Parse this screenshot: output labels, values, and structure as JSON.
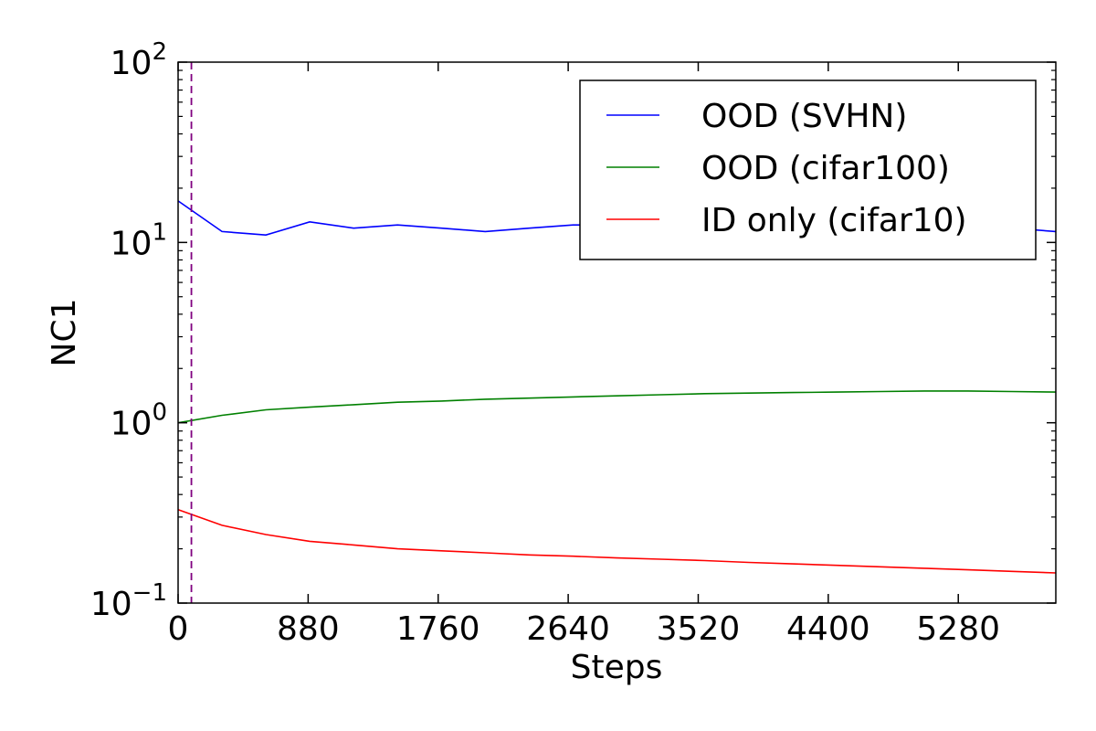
{
  "chart_data": {
    "type": "line",
    "title": "",
    "xlabel": "Steps",
    "ylabel": "NC1",
    "xlim": [
      0,
      5940
    ],
    "ylim": [
      0.1,
      100
    ],
    "yscale": "log",
    "grid": false,
    "legend_position": "top-right",
    "xticks": [
      0,
      880,
      1760,
      2640,
      3520,
      4400,
      5280
    ],
    "xtick_labels": [
      "0",
      "880",
      "1760",
      "2640",
      "3520",
      "4400",
      "5280"
    ],
    "yticks": [
      {
        "value": 0.1,
        "base": "10",
        "exponent": "−1"
      },
      {
        "value": 1,
        "base": "10",
        "exponent": "0"
      },
      {
        "value": 10,
        "base": "10",
        "exponent": "1"
      },
      {
        "value": 100,
        "base": "10",
        "exponent": "2"
      }
    ],
    "vline": {
      "x": 90,
      "color": "#800080",
      "style": "dashed"
    },
    "series": [
      {
        "name": "OOD (SVHN)",
        "color": "#0000ff",
        "x": [
          0,
          297,
          594,
          891,
          1188,
          1485,
          1782,
          2079,
          2376,
          2673,
          2970,
          3267,
          3564,
          3861,
          4158,
          4455,
          4752,
          5049,
          5346,
          5643,
          5940
        ],
        "values": [
          17.0,
          11.5,
          11.0,
          13.0,
          12.0,
          12.5,
          12.0,
          11.5,
          12.0,
          12.5,
          12.5,
          12.0,
          12.5,
          12.0,
          12.0,
          12.5,
          12.5,
          12.0,
          12.5,
          12.0,
          11.5
        ]
      },
      {
        "name": "OOD (cifar100)",
        "color": "#008000",
        "x": [
          0,
          297,
          594,
          891,
          1188,
          1485,
          1782,
          2079,
          2376,
          2673,
          2970,
          3267,
          3564,
          3861,
          4158,
          4455,
          4752,
          5049,
          5346,
          5643,
          5940
        ],
        "values": [
          1.0,
          1.1,
          1.18,
          1.22,
          1.26,
          1.3,
          1.32,
          1.35,
          1.37,
          1.39,
          1.41,
          1.43,
          1.45,
          1.46,
          1.47,
          1.48,
          1.49,
          1.5,
          1.5,
          1.49,
          1.48
        ]
      },
      {
        "name": "ID only (cifar10)",
        "color": "#ff0000",
        "x": [
          0,
          297,
          594,
          891,
          1188,
          1485,
          1782,
          2079,
          2376,
          2673,
          2970,
          3267,
          3564,
          3861,
          4158,
          4455,
          4752,
          5049,
          5346,
          5643,
          5940
        ],
        "values": [
          0.33,
          0.27,
          0.24,
          0.22,
          0.21,
          0.2,
          0.195,
          0.19,
          0.185,
          0.182,
          0.178,
          0.175,
          0.172,
          0.168,
          0.165,
          0.162,
          0.159,
          0.156,
          0.153,
          0.15,
          0.147
        ]
      }
    ]
  }
}
